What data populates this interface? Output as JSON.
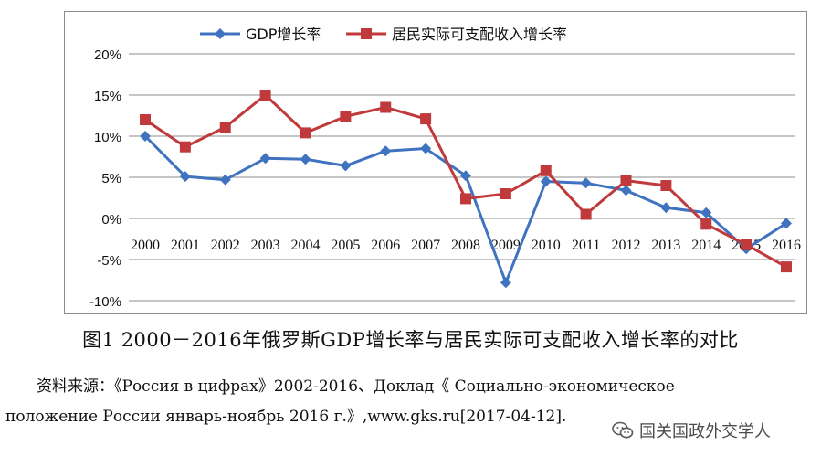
{
  "caption": "图1  2000－2016年俄罗斯GDP增长率与居民实际可支配收入增长率的对比",
  "source": {
    "line1": "资料来源：《Россия в цифрах》2002-2016、Доклад《 Социально-экономическое",
    "line2": "положение России январь-ноябрь 2016 г.》,www.gks.ru[2017-04-12]."
  },
  "watermark": {
    "text": "国关国政外交学人",
    "icon": "wechat-icon"
  },
  "colors": {
    "gdp": "#3f73c0",
    "income": "#c0393b",
    "grid": "#8c8c8c",
    "axis_text": "#111111"
  },
  "chart_data": {
    "type": "line",
    "title": "",
    "xlabel": "",
    "ylabel": "",
    "x": [
      "2000",
      "2001",
      "2002",
      "2003",
      "2004",
      "2005",
      "2006",
      "2007",
      "2008",
      "2009",
      "2010",
      "2011",
      "2012",
      "2013",
      "2014",
      "2015",
      "2016"
    ],
    "ylim": [
      -10,
      20
    ],
    "yticks": [
      -10,
      -5,
      0,
      5,
      10,
      15,
      20
    ],
    "ytick_labels": [
      "-10%",
      "-5%",
      "0%",
      "5%",
      "10%",
      "15%",
      "20%"
    ],
    "grid": true,
    "legend_position": "top-center",
    "series": [
      {
        "name": "GDP增长率",
        "marker": "diamond",
        "values": [
          10.0,
          5.1,
          4.7,
          7.3,
          7.2,
          6.4,
          8.2,
          8.5,
          5.2,
          -7.8,
          4.5,
          4.3,
          3.4,
          1.3,
          0.7,
          -3.7,
          -0.6
        ]
      },
      {
        "name": "居民实际可支配收入增长率",
        "marker": "square",
        "values": [
          12.0,
          8.7,
          11.1,
          15.0,
          10.4,
          12.4,
          13.5,
          12.1,
          2.4,
          3.0,
          5.8,
          0.5,
          4.6,
          4.0,
          -0.7,
          -3.2,
          -5.9
        ]
      }
    ]
  }
}
